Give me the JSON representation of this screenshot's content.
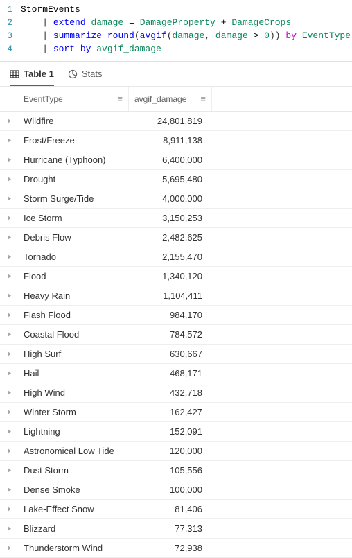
{
  "editor": {
    "lines": [
      {
        "num": "1",
        "tokens": [
          {
            "cls": "t-ident",
            "t": "StormEvents"
          }
        ]
      },
      {
        "num": "2",
        "tokens": [
          {
            "cls": "t-pipe",
            "t": "    | "
          },
          {
            "cls": "t-kw",
            "t": "extend"
          },
          {
            "cls": "",
            "t": " "
          },
          {
            "cls": "t-col",
            "t": "damage"
          },
          {
            "cls": "",
            "t": " "
          },
          {
            "cls": "t-op",
            "t": "="
          },
          {
            "cls": "",
            "t": " "
          },
          {
            "cls": "t-col",
            "t": "DamageProperty"
          },
          {
            "cls": "",
            "t": " "
          },
          {
            "cls": "t-op",
            "t": "+"
          },
          {
            "cls": "",
            "t": " "
          },
          {
            "cls": "t-col",
            "t": "DamageCrops"
          }
        ]
      },
      {
        "num": "3",
        "tokens": [
          {
            "cls": "t-pipe",
            "t": "    | "
          },
          {
            "cls": "t-kw",
            "t": "summarize"
          },
          {
            "cls": "",
            "t": " "
          },
          {
            "cls": "t-func",
            "t": "round"
          },
          {
            "cls": "",
            "t": "("
          },
          {
            "cls": "t-func",
            "t": "avgif"
          },
          {
            "cls": "",
            "t": "("
          },
          {
            "cls": "t-col",
            "t": "damage"
          },
          {
            "cls": "",
            "t": ", "
          },
          {
            "cls": "t-col",
            "t": "damage"
          },
          {
            "cls": "",
            "t": " "
          },
          {
            "cls": "t-op",
            "t": ">"
          },
          {
            "cls": "",
            "t": " "
          },
          {
            "cls": "t-num",
            "t": "0"
          },
          {
            "cls": "",
            "t": ")) "
          },
          {
            "cls": "t-by",
            "t": "by"
          },
          {
            "cls": "",
            "t": " "
          },
          {
            "cls": "t-col",
            "t": "EventType"
          }
        ]
      },
      {
        "num": "4",
        "tokens": [
          {
            "cls": "t-pipe",
            "t": "    | "
          },
          {
            "cls": "t-kw",
            "t": "sort by"
          },
          {
            "cls": "",
            "t": " "
          },
          {
            "cls": "t-col",
            "t": "avgif_damage"
          }
        ]
      }
    ]
  },
  "tabs": {
    "table_label": "Table 1",
    "stats_label": "Stats"
  },
  "grid": {
    "columns": {
      "a": "EventType",
      "b": "avgif_damage"
    },
    "rows": [
      {
        "a": "Wildfire",
        "b": "24,801,819"
      },
      {
        "a": "Frost/Freeze",
        "b": "8,911,138"
      },
      {
        "a": "Hurricane (Typhoon)",
        "b": "6,400,000"
      },
      {
        "a": "Drought",
        "b": "5,695,480"
      },
      {
        "a": "Storm Surge/Tide",
        "b": "4,000,000"
      },
      {
        "a": "Ice Storm",
        "b": "3,150,253"
      },
      {
        "a": "Debris Flow",
        "b": "2,482,625"
      },
      {
        "a": "Tornado",
        "b": "2,155,470"
      },
      {
        "a": "Flood",
        "b": "1,340,120"
      },
      {
        "a": "Heavy Rain",
        "b": "1,104,411"
      },
      {
        "a": "Flash Flood",
        "b": "984,170"
      },
      {
        "a": "Coastal Flood",
        "b": "784,572"
      },
      {
        "a": "High Surf",
        "b": "630,667"
      },
      {
        "a": "Hail",
        "b": "468,171"
      },
      {
        "a": "High Wind",
        "b": "432,718"
      },
      {
        "a": "Winter Storm",
        "b": "162,427"
      },
      {
        "a": "Lightning",
        "b": "152,091"
      },
      {
        "a": "Astronomical Low Tide",
        "b": "120,000"
      },
      {
        "a": "Dust Storm",
        "b": "105,556"
      },
      {
        "a": "Dense Smoke",
        "b": "100,000"
      },
      {
        "a": "Lake-Effect Snow",
        "b": "81,406"
      },
      {
        "a": "Blizzard",
        "b": "77,313"
      },
      {
        "a": "Thunderstorm Wind",
        "b": "72,938"
      }
    ]
  }
}
